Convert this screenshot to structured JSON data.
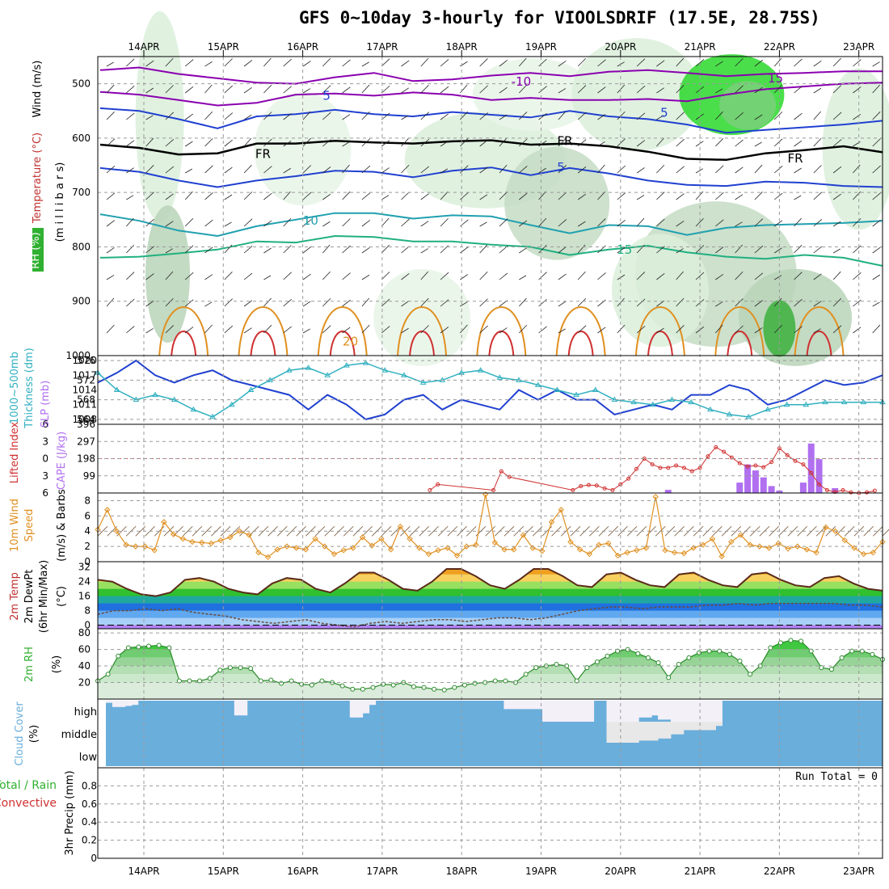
{
  "title": "GFS 0~10day 3-hourly for VIOOLSDRIF (17.5E, 28.75S)",
  "dates": [
    "14APR",
    "15APR",
    "16APR",
    "17APR",
    "18APR",
    "19APR",
    "20APR",
    "21APR",
    "22APR",
    "23APR"
  ],
  "colors": {
    "rh_green": "#2e8b2e",
    "temp_blue": "#2040d0",
    "temp_purple": "#8a00b0",
    "temp_orange": "#e09020",
    "freezing": "#000000",
    "thickness": "#2040d0",
    "slp": "#30b0c0",
    "lifted_index": "#d03030",
    "cape": "#b070f0",
    "wind10m": "#e09020",
    "cloud": "#6aaedc",
    "rh2m": "#40b040"
  },
  "chart_data": [
    {
      "panel": "upper_air",
      "type": "heatmap",
      "ylabel_parts": [
        "Wind (m/s)",
        "Temperature (°C)",
        "(m i l l i b a r s)",
        "RH (%)"
      ],
      "y_ticks": [
        500,
        600,
        700,
        800,
        900,
        1000
      ],
      "ylim": [
        1000,
        450
      ],
      "y_scale": "reversed pressure",
      "contour_labels": [
        {
          "text": "-10",
          "day": 4.75,
          "p": 496
        },
        {
          "text": "15",
          "day": 7.95,
          "p": 490
        },
        {
          "text": "5",
          "day": 2.3,
          "p": 522
        },
        {
          "text": "5",
          "day": 6.55,
          "p": 553
        },
        {
          "text": "FR",
          "day": 1.5,
          "p": 629
        },
        {
          "text": "FR",
          "day": 5.3,
          "p": 605
        },
        {
          "text": "FR",
          "day": 8.2,
          "p": 637
        },
        {
          "text": "5",
          "day": 5.25,
          "p": 654
        },
        {
          "text": "10",
          "day": 2.1,
          "p": 752
        },
        {
          "text": "15",
          "day": 6.05,
          "p": 805
        },
        {
          "text": "20",
          "day": 2.6,
          "p": 974
        }
      ],
      "isotherms": [
        {
          "label": "-10",
          "color": "purple",
          "p": [
            475,
            470,
            482,
            490,
            498,
            500,
            488,
            480,
            495,
            492,
            485,
            480,
            486,
            478,
            475,
            480,
            486,
            482,
            480,
            477,
            477
          ]
        },
        {
          "label": "-5",
          "color": "purple",
          "p": [
            515,
            520,
            530,
            540,
            535,
            520,
            518,
            522,
            516,
            520,
            530,
            526,
            530,
            530,
            528,
            532,
            520,
            510,
            505,
            500,
            498
          ]
        },
        {
          "label": "5",
          "color": "blue",
          "p": [
            545,
            550,
            565,
            582,
            560,
            556,
            548,
            556,
            560,
            552,
            557,
            562,
            550,
            560,
            565,
            575,
            590,
            585,
            580,
            575,
            568
          ]
        },
        {
          "label": "FR",
          "color": "black",
          "p": [
            612,
            618,
            630,
            628,
            610,
            610,
            605,
            608,
            610,
            606,
            604,
            612,
            610,
            615,
            625,
            638,
            640,
            628,
            622,
            615,
            626
          ]
        },
        {
          "label": "5",
          "color": "blue",
          "p": [
            655,
            662,
            678,
            690,
            678,
            670,
            660,
            662,
            672,
            660,
            654,
            668,
            655,
            665,
            678,
            686,
            688,
            680,
            682,
            688,
            690
          ]
        },
        {
          "label": "10",
          "color": "teal",
          "p": [
            740,
            752,
            770,
            780,
            762,
            750,
            738,
            738,
            748,
            742,
            744,
            760,
            775,
            760,
            762,
            778,
            765,
            760,
            758,
            756,
            752
          ]
        },
        {
          "label": "15",
          "color": "green",
          "p": [
            820,
            818,
            812,
            805,
            790,
            792,
            780,
            782,
            790,
            790,
            796,
            800,
            815,
            805,
            798,
            810,
            818,
            822,
            815,
            820,
            835
          ]
        }
      ]
    },
    {
      "panel": "thickness_slp",
      "type": "line",
      "ylabel_left": "1000~500mb Thickness (dm)",
      "ylabel_right": "SLP (mb)",
      "y_ticks": [
        564,
        568,
        572,
        576
      ],
      "ylim": [
        563,
        577
      ],
      "y_ticks_right": [
        1008,
        1011,
        1014,
        1017,
        1020
      ],
      "series": [
        {
          "name": "1000~500mb Thickness (dm)",
          "axis": "left",
          "values": [
            571.5,
            573.5,
            576,
            573,
            571.5,
            573,
            574,
            572,
            571,
            570,
            569,
            566,
            569,
            567,
            564,
            565,
            568,
            569,
            566,
            568,
            567,
            566,
            570,
            568,
            570,
            568,
            568,
            565,
            566,
            567,
            566,
            569,
            569,
            571,
            570,
            567,
            568,
            570,
            572,
            571,
            571.5,
            573
          ]
        },
        {
          "name": "SLP (mb)",
          "axis": "right",
          "values": [
            1017.5,
            1014,
            1012,
            1013,
            1012,
            1010,
            1008.5,
            1011,
            1014,
            1016,
            1018,
            1018.5,
            1017,
            1019,
            1019.5,
            1018,
            1017,
            1015.5,
            1016,
            1017.5,
            1018,
            1016.5,
            1016,
            1015,
            1014,
            1013,
            1014,
            1012,
            1011.5,
            1011,
            1012,
            1011.5,
            1010,
            1009,
            1008.5,
            1010,
            1011,
            1011,
            1011.5,
            1011.5,
            1011.5,
            1011.5
          ]
        }
      ]
    },
    {
      "panel": "li_cape",
      "type": "bar",
      "ylabel_left": "Lifted Index",
      "ylabel_right": "CAPE (J/kg)",
      "y_ticks_left": [
        6,
        3,
        0,
        -3,
        -6
      ],
      "y_ticks_right": [
        99,
        198,
        297,
        396
      ],
      "ylim_left": [
        6,
        -6
      ],
      "lifted_index_x": [
        3.6,
        3.7,
        4.4,
        4.5,
        4.6,
        5.4,
        5.5,
        5.6,
        5.7,
        5.8,
        5.9,
        6.0,
        6.1,
        6.2,
        6.3,
        6.4,
        6.5,
        6.6,
        6.7,
        6.8,
        6.9,
        7.0,
        7.1,
        7.2,
        7.3,
        7.4,
        7.5,
        7.6,
        7.7,
        7.8,
        7.9,
        8.0,
        8.1,
        8.2,
        8.3,
        8.4,
        8.5,
        8.6,
        8.7,
        8.8,
        8.9,
        9.0,
        9.1,
        9.2
      ],
      "lifted_index": [
        5.5,
        4.5,
        5.5,
        2.2,
        3.2,
        5.5,
        4.8,
        4.6,
        4.7,
        5.2,
        5.5,
        4.5,
        3.5,
        1.8,
        0.0,
        1.0,
        1.6,
        1.6,
        1.2,
        1.6,
        2.2,
        1.6,
        -0.4,
        -2.0,
        -1.2,
        -0.2,
        0.8,
        1.4,
        1.2,
        1.5,
        0.6,
        -1.8,
        -0.6,
        0.4,
        1.0,
        2.5,
        4.5,
        5.5,
        5.8,
        5.5,
        5.9,
        6.0,
        5.9,
        5.6
      ],
      "cape_x": [
        6.6,
        7.5,
        7.6,
        7.7,
        7.8,
        7.9,
        8.0,
        8.3,
        8.4,
        8.5,
        8.7
      ],
      "cape": [
        18,
        60,
        165,
        130,
        90,
        40,
        14,
        60,
        285,
        195,
        28
      ]
    },
    {
      "panel": "wind10m",
      "type": "line",
      "ylabel": "10m Wind Speed & Barbs (m/s)",
      "y_ticks": [
        0,
        2,
        4,
        6,
        8
      ],
      "ylim": [
        0,
        9
      ],
      "values": [
        4.2,
        6.8,
        4.0,
        2.2,
        2.0,
        2.0,
        1.5,
        5.2,
        3.6,
        3.0,
        2.6,
        2.5,
        2.4,
        2.8,
        3.2,
        4.0,
        3.5,
        1.2,
        0.6,
        1.6,
        2.0,
        1.8,
        1.6,
        3.0,
        2.0,
        1.0,
        1.5,
        1.8,
        3.2,
        2.1,
        3.0,
        1.6,
        4.6,
        3.0,
        1.8,
        1.0,
        1.5,
        1.8,
        0.8,
        2.0,
        2.2,
        8.8,
        2.5,
        1.6,
        1.6,
        3.5,
        1.8,
        1.4,
        5.2,
        6.8,
        2.6,
        1.6,
        1.0,
        2.2,
        2.4,
        0.8,
        1.2,
        1.5,
        1.8,
        8.5,
        1.5,
        1.2,
        1.1,
        1.8,
        2.2,
        3.0,
        0.7,
        2.6,
        3.5,
        2.2,
        2.0,
        1.8,
        2.4,
        1.7,
        2.0,
        1.6,
        1.2,
        4.5,
        4.0,
        2.8,
        1.8,
        1.0,
        1.2,
        2.6
      ]
    },
    {
      "panel": "temp2m",
      "type": "area",
      "ylabel": "2m Temp 2m DewPt (6hr Min/Max) (°C)",
      "y_ticks": [
        0,
        8,
        16,
        24,
        32
      ],
      "ylim": [
        -2,
        35
      ],
      "temperature": [
        25,
        24,
        20,
        17,
        16,
        18,
        25,
        26,
        24,
        20,
        18,
        17,
        23,
        26,
        25,
        20,
        18,
        23,
        29,
        29,
        25,
        20,
        19,
        24,
        31,
        31,
        27,
        22,
        20,
        25,
        31,
        31,
        27,
        22,
        21,
        28,
        29,
        25,
        22,
        21,
        28,
        29,
        25,
        22,
        21,
        28,
        29,
        25,
        22,
        21,
        26,
        27,
        23,
        20,
        19
      ],
      "dewpoint": [
        6,
        8,
        8,
        9,
        8,
        9,
        7,
        6,
        5,
        3,
        2,
        1,
        2,
        3,
        1,
        0,
        -1,
        1,
        2,
        1,
        2,
        3,
        3,
        2,
        3,
        4,
        4,
        3,
        4,
        6,
        8,
        9,
        10,
        10,
        9,
        10,
        10,
        10,
        11,
        11,
        12,
        11,
        12,
        12,
        12,
        12,
        12,
        11,
        11,
        10
      ]
    },
    {
      "panel": "rh2m",
      "type": "area",
      "ylabel": "2m RH (%)",
      "y_ticks": [
        20,
        40,
        60,
        80
      ],
      "ylim": [
        0,
        85
      ],
      "values": [
        22,
        30,
        52,
        62,
        63,
        64,
        65,
        62,
        22,
        22,
        22,
        25,
        35,
        38,
        38,
        37,
        22,
        23,
        19,
        22,
        18,
        17,
        22,
        20,
        16,
        12,
        12,
        14,
        18,
        17,
        20,
        15,
        14,
        12,
        11,
        14,
        17,
        19,
        20,
        22,
        22,
        20,
        30,
        38,
        40,
        42,
        40,
        22,
        38,
        45,
        52,
        58,
        60,
        55,
        50,
        44,
        26,
        42,
        50,
        56,
        58,
        58,
        54,
        46,
        30,
        40,
        62,
        68,
        71,
        70,
        58,
        38,
        36,
        50,
        58,
        58,
        54,
        48
      ]
    },
    {
      "panel": "cloud",
      "type": "heatmap",
      "ylabel": "Cloud Cover (%)",
      "levels": [
        "high",
        "middle",
        "low"
      ],
      "high_cover": [
        90,
        70,
        70,
        75,
        80,
        100,
        100,
        100,
        100,
        100,
        100,
        100,
        100,
        100,
        100,
        100,
        100,
        100,
        100,
        100,
        30,
        30,
        100,
        100,
        100,
        100,
        100,
        100,
        100,
        100,
        100,
        100,
        100,
        100,
        100,
        100,
        100,
        100,
        20,
        20,
        40,
        80,
        100,
        100,
        100,
        100,
        100,
        100,
        100,
        100,
        100,
        100,
        100,
        100,
        100,
        100,
        100,
        100,
        100,
        100,
        100,
        100,
        60,
        60,
        60,
        60,
        60,
        60,
        0,
        0,
        0,
        0,
        0,
        0,
        0,
        0,
        100,
        100,
        0,
        0,
        0,
        0,
        0,
        20,
        20,
        30,
        10,
        10,
        0,
        0,
        0,
        0,
        0,
        0,
        0,
        0,
        100,
        100,
        100,
        100,
        100,
        100,
        100,
        100,
        100,
        100,
        100,
        100,
        100,
        100,
        100,
        100,
        100,
        100,
        100,
        100,
        100,
        100,
        100,
        100,
        100
      ],
      "mid_cover": [
        100,
        100,
        100,
        100,
        100,
        100,
        100,
        100,
        100,
        100,
        100,
        100,
        100,
        100,
        100,
        100,
        100,
        100,
        100,
        100,
        100,
        100,
        100,
        100,
        100,
        100,
        100,
        100,
        100,
        100,
        100,
        100,
        100,
        100,
        100,
        100,
        100,
        100,
        100,
        100,
        100,
        100,
        100,
        100,
        100,
        100,
        100,
        100,
        100,
        100,
        100,
        100,
        100,
        100,
        100,
        100,
        100,
        100,
        100,
        100,
        100,
        100,
        100,
        100,
        100,
        100,
        100,
        100,
        100,
        100,
        100,
        100,
        100,
        100,
        100,
        100,
        100,
        100,
        0,
        0,
        0,
        0,
        0,
        10,
        10,
        10,
        20,
        20,
        40,
        40,
        60,
        60,
        60,
        60,
        60,
        80,
        100,
        100,
        100,
        100,
        100,
        100,
        100,
        100,
        100,
        100,
        100,
        100,
        100,
        100,
        100,
        100,
        100,
        100,
        100,
        100,
        100,
        100,
        100,
        100
      ]
    },
    {
      "panel": "precip",
      "type": "bar",
      "ylabel": "Total / Rain Convective 3hr Precip (mm)",
      "y_ticks": [
        0,
        0.2,
        0.4,
        0.6,
        0.8
      ],
      "ylim": [
        0,
        1
      ],
      "run_total_label": "Run Total = 0",
      "values": []
    }
  ],
  "labels": {
    "wind": "Wind (m/s)",
    "temperature": "Temperature (°C)",
    "millibars": "(m i l l i b a r s)",
    "rh": "RH (%)",
    "thickness_a": "1000~500mb",
    "thickness_b": "Thickness (dm)",
    "slp": "SLP (mb)",
    "lifted": "Lifted Index",
    "cape": "CAPE (J/kg)",
    "wind10_a": "10m Wind",
    "wind10_b": "Speed",
    "wind10_c": "(m/s) & Barbs",
    "temp2m_a": "2m Temp",
    "temp2m_b": "2m DewPt",
    "temp2m_c": "(6hr Min/Max)",
    "temp2m_d": "(°C)",
    "rh2m_a": "2m RH",
    "rh2m_b": "(%)",
    "cloud_a": "Cloud Cover",
    "cloud_b": "(%)",
    "precip_a": "Total / Rain",
    "precip_b": "Convective",
    "precip_c": "3hr Precip (mm)"
  }
}
